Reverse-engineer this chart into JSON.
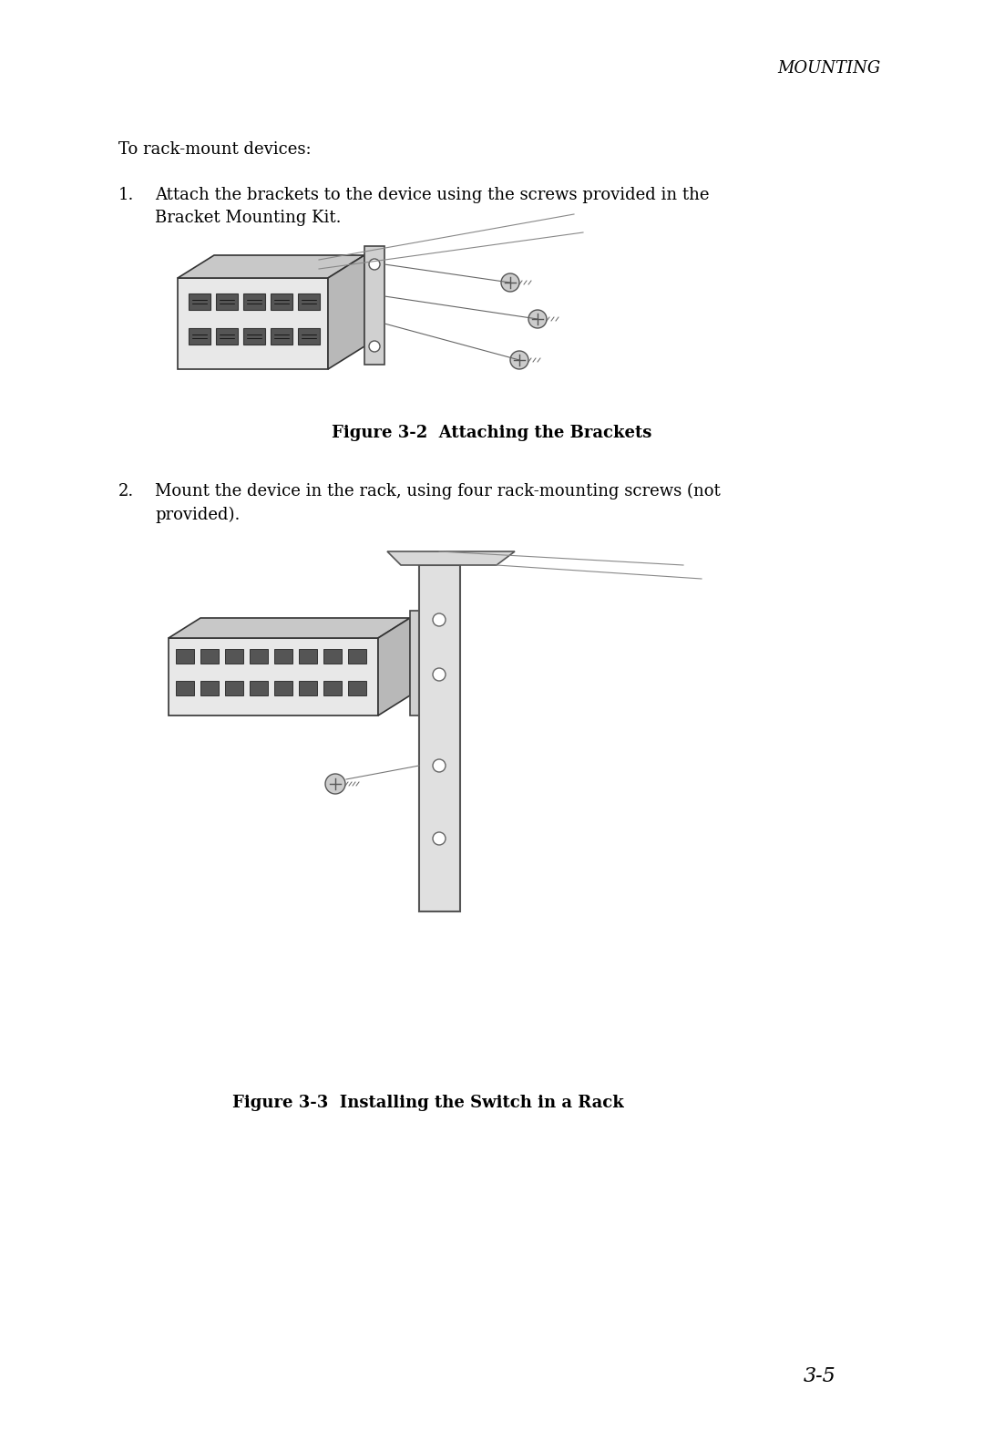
{
  "bg_color": "#ffffff",
  "text_color": "#000000",
  "header": "MOUNTING",
  "intro_text": "To rack-mount devices:",
  "step1_num": "1.",
  "step1_text": "Attach the brackets to the device using the screws provided in the\nBracket Mounting Kit.",
  "fig1_caption": "Figure 3-2  Attaching the Brackets",
  "step2_num": "2.",
  "step2_text": "Mount the device in the rack, using four rack-mounting screws (not\nprovided).",
  "fig2_caption": "Figure 3-3  Installing the Switch in a Rack",
  "page_num": "3-5",
  "header_font_size": 13,
  "body_font_size": 13,
  "caption_font_size": 13,
  "page_num_font_size": 16
}
